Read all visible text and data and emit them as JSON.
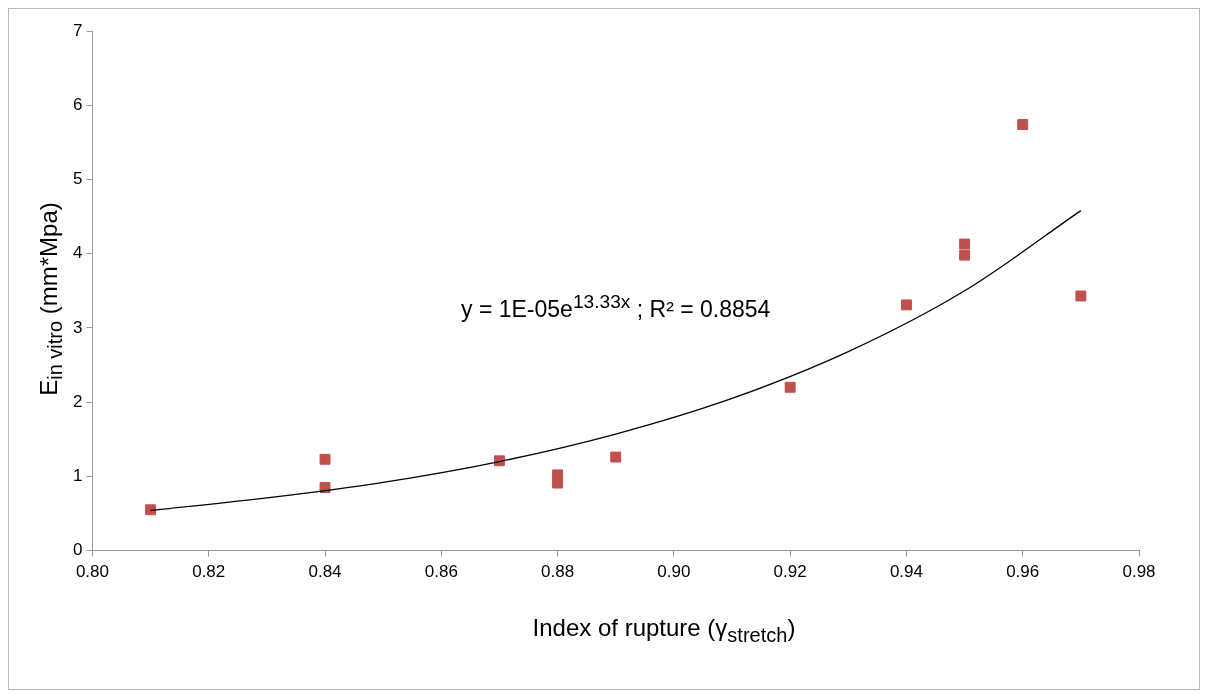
{
  "chart_data": {
    "type": "scatter",
    "xlabel": "Index of rupture (γ$_{stretch}$)",
    "ylabel": "E$_{in vitro}$ (mm*Mpa)",
    "annotations": [
      "y = 1E-05e$^{13.33x}$ ; R² = 0.8854"
    ],
    "series": [
      {
        "color": "#c0504d",
        "marker": "square",
        "x": [
          0.81,
          0.84,
          0.84,
          0.87,
          0.88,
          0.88,
          0.89,
          0.92,
          0.94,
          0.95,
          0.95,
          0.96,
          0.97
        ],
        "values": [
          0.55,
          1.23,
          0.85,
          1.21,
          1.02,
          0.91,
          1.26,
          2.2,
          3.31,
          4.13,
          3.98,
          5.74,
          3.43
        ]
      },
      {
        "type": "line",
        "color": "#000000",
        "marker": "none",
        "line_style": "solid",
        "x": [
          0.81,
          0.83,
          0.85,
          0.87,
          0.89,
          0.91,
          0.93,
          0.95,
          0.97
        ],
        "values": [
          0.54,
          0.71,
          0.92,
          1.2,
          1.57,
          2.05,
          2.68,
          3.5,
          4.58
        ]
      }
    ],
    "xlim": [
      0.8,
      0.98
    ],
    "xticks": [
      {
        "value": 0.8,
        "label": "0.80"
      },
      {
        "value": 0.82,
        "label": "0.82"
      },
      {
        "value": 0.84,
        "label": "0.84"
      },
      {
        "value": 0.86,
        "label": "0.86"
      },
      {
        "value": 0.88,
        "label": "0.88"
      },
      {
        "value": 0.9,
        "label": "0.90"
      },
      {
        "value": 0.92,
        "label": "0.92"
      },
      {
        "value": 0.94,
        "label": "0.94"
      },
      {
        "value": 0.96,
        "label": "0.96"
      },
      {
        "value": 0.98,
        "label": "0.98"
      }
    ],
    "ylim": [
      0,
      7
    ],
    "yticks": [
      0,
      1,
      2,
      3,
      4,
      5,
      6,
      7
    ],
    "grid": false,
    "legend": false
  }
}
